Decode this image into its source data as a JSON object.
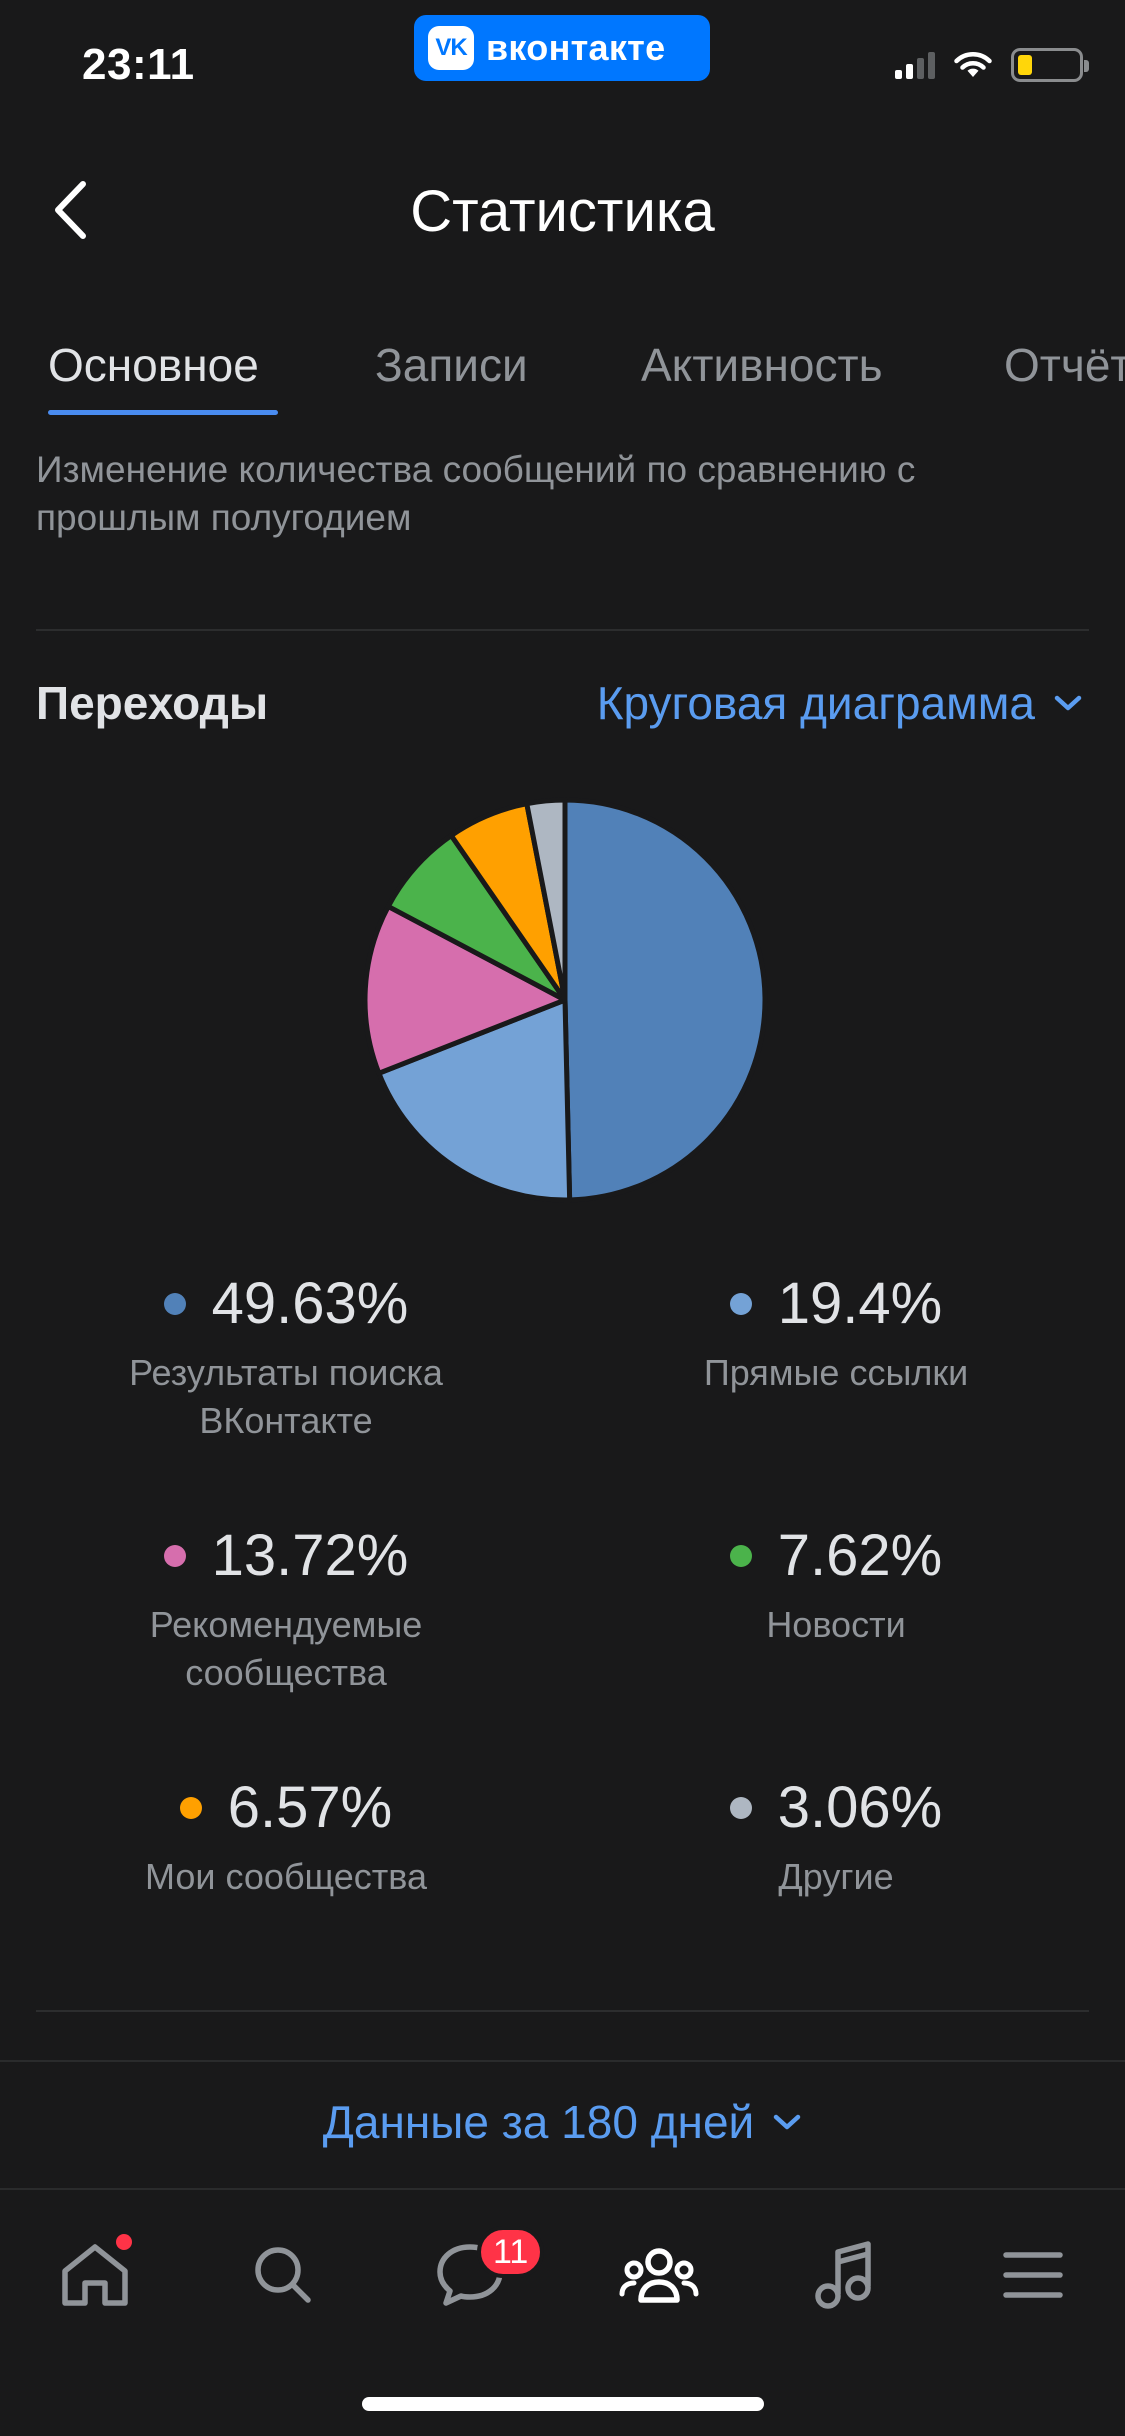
{
  "status_bar": {
    "time": "23:11",
    "app_pill": {
      "logo_text": "VK",
      "label": "вконтакте"
    }
  },
  "header": {
    "title": "Статистика",
    "back_icon": "chevron-left-icon"
  },
  "tabs": [
    {
      "label": "Основное",
      "active": true
    },
    {
      "label": "Записи",
      "active": false
    },
    {
      "label": "Активность",
      "active": false
    },
    {
      "label": "Отчёты",
      "active": false
    }
  ],
  "description": "Изменение количества сообщений по сравнению с прошлым полугодием",
  "section": {
    "title": "Переходы",
    "chart_switch_label": "Круговая диаграмма"
  },
  "chart_data": {
    "type": "pie",
    "categories": [
      "Результаты поиска ВКонтакте",
      "Прямые ссылки",
      "Рекомендуемые сообщества",
      "Новости",
      "Мои сообщества",
      "Другие"
    ],
    "values": [
      49.63,
      19.4,
      13.72,
      7.62,
      6.57,
      3.06
    ],
    "value_labels": [
      "49.63%",
      "19.4%",
      "13.72%",
      "7.62%",
      "6.57%",
      "3.06%"
    ],
    "colors": [
      "#5181b8",
      "#74a2d6",
      "#d66ead",
      "#4bb34b",
      "#ffa000",
      "#aeb7c2"
    ],
    "legend_position": "bottom"
  },
  "footer": {
    "period_label": "Данные за 180 дней"
  },
  "tabbar": {
    "items": [
      {
        "name": "home-icon",
        "has_dot": true
      },
      {
        "name": "search-icon"
      },
      {
        "name": "messages-icon",
        "badge": "11"
      },
      {
        "name": "communities-icon",
        "active": true
      },
      {
        "name": "music-icon"
      },
      {
        "name": "menu-icon"
      }
    ]
  }
}
